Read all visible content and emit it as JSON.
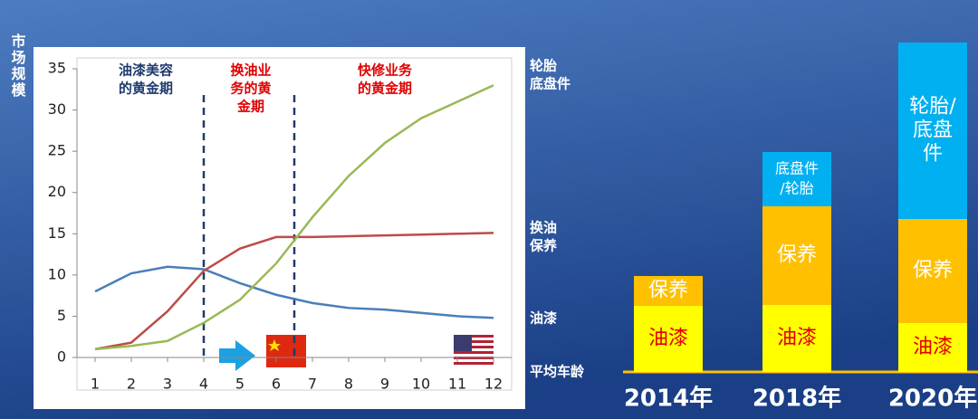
{
  "chart_data": [
    {
      "type": "line",
      "y_label": "市场规模",
      "x": [
        1,
        2,
        3,
        4,
        5,
        6,
        7,
        8,
        9,
        10,
        11,
        12
      ],
      "xlim": [
        0.5,
        12.5
      ],
      "xticks": [
        1,
        2,
        3,
        4,
        5,
        6,
        7,
        8,
        9,
        10,
        11,
        12
      ],
      "ylim": [
        0,
        35
      ],
      "yticks": [
        0,
        5,
        10,
        15,
        20,
        25,
        30,
        35
      ],
      "x_label": "平均车龄",
      "series": [
        {
          "name": [
            "油漆"
          ],
          "color": "#4a7ebb",
          "values": [
            8,
            10.2,
            11,
            10.7,
            9,
            7.6,
            6.6,
            6,
            5.8,
            5.4,
            5,
            4.8
          ]
        },
        {
          "name": [
            "换油",
            "保养"
          ],
          "color": "#be4b48",
          "values": [
            1,
            1.8,
            5.6,
            10.5,
            13.2,
            14.6,
            14.6,
            14.7,
            14.8,
            14.9,
            15,
            15.1
          ]
        },
        {
          "name": [
            "轮胎",
            "底盘件"
          ],
          "color": "#98b954",
          "values": [
            1,
            1.4,
            2,
            4.2,
            7,
            11.4,
            17,
            22,
            26,
            29,
            31,
            33
          ]
        }
      ],
      "phase_boundaries": [
        4,
        6.5
      ],
      "annotations": [
        {
          "lines": [
            "油漆美容",
            "的黄金期"
          ],
          "color": "#1f3a6e",
          "x": 2.4
        },
        {
          "lines": [
            "换油业",
            "务的黄",
            "金期"
          ],
          "color": "#e00000",
          "x": 5.3
        },
        {
          "lines": [
            "快修业务",
            "的黄金期"
          ],
          "color": "#e00000",
          "x": 9
        }
      ]
    },
    {
      "type": "stacked-bar",
      "categories": [
        "2014年",
        "2018年",
        "2020年"
      ],
      "series": [
        {
          "color": "#ffff00",
          "text_color": "#e00000",
          "values": [
            7.3,
            7.4,
            5.4
          ],
          "segment_labels": [
            [
              "油漆"
            ],
            [
              "油漆"
            ],
            [
              "油漆"
            ]
          ]
        },
        {
          "color": "#ffc000",
          "text_color": "#ffffff",
          "values": [
            3.3,
            10.9,
            11.5
          ],
          "segment_labels": [
            [
              "保养"
            ],
            [
              "保养"
            ],
            [
              "保养"
            ]
          ]
        },
        {
          "color": "#00b0f0",
          "text_color": "#ffffff",
          "values": [
            null,
            6,
            19.5
          ],
          "segment_labels": [
            null,
            [
              "底盘件",
              "/轮胎"
            ],
            [
              "轮胎/",
              "底盘",
              "件"
            ]
          ]
        }
      ]
    }
  ]
}
